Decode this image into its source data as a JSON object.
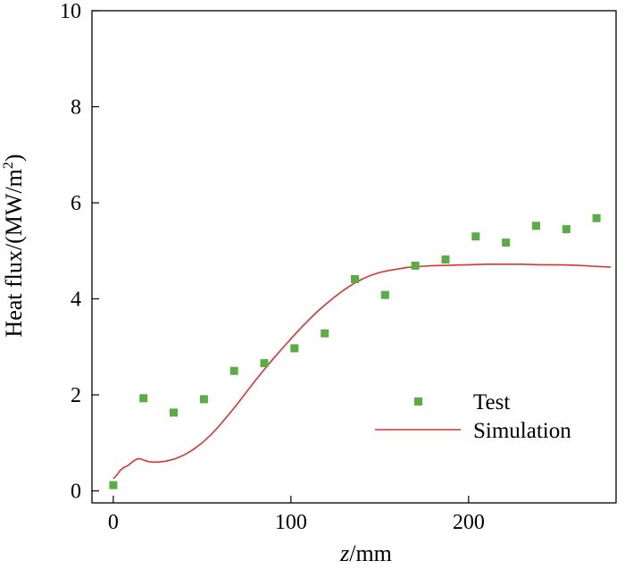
{
  "chart_data": {
    "type": "scatter",
    "xlabel_italic": "z",
    "xlabel_rest": "/mm",
    "ylabel_main": "Heat flux/(MW/m",
    "ylabel_sup": "2",
    "ylabel_end": ")",
    "xlim": [
      -12,
      283
    ],
    "ylim": [
      -0.25,
      10
    ],
    "x_ticks": [
      0,
      100,
      200
    ],
    "y_ticks": [
      0,
      2,
      4,
      6,
      8,
      10
    ],
    "x_tick_labels": [
      "0",
      "100",
      "200"
    ],
    "y_tick_labels": [
      "0",
      "2",
      "4",
      "6",
      "8",
      "10"
    ],
    "legend_position": "center-right",
    "series": [
      {
        "name": "Test",
        "kind": "scatter",
        "color": "#5aac44",
        "x": [
          0,
          17,
          34,
          51,
          68,
          85,
          102,
          119,
          136,
          153,
          170,
          187,
          204,
          221,
          238,
          255,
          272
        ],
        "y": [
          0.12,
          1.93,
          1.63,
          1.91,
          2.5,
          2.66,
          2.97,
          3.28,
          4.41,
          4.08,
          4.69,
          4.82,
          5.3,
          5.17,
          5.52,
          5.45,
          5.68
        ]
      },
      {
        "name": "Simulation",
        "kind": "line",
        "color": "#d93434",
        "x": [
          0,
          2,
          4,
          6,
          8,
          10,
          12,
          14,
          16,
          18,
          20,
          22,
          25,
          30,
          35,
          40,
          45,
          50,
          55,
          60,
          65,
          70,
          75,
          80,
          85,
          90,
          95,
          100,
          105,
          110,
          115,
          120,
          125,
          130,
          135,
          140,
          145,
          150,
          155,
          160,
          165,
          170,
          175,
          180,
          190,
          200,
          210,
          220,
          230,
          240,
          250,
          260,
          270,
          280
        ],
        "y": [
          0.25,
          0.33,
          0.43,
          0.49,
          0.52,
          0.58,
          0.64,
          0.67,
          0.66,
          0.63,
          0.61,
          0.6,
          0.6,
          0.62,
          0.67,
          0.75,
          0.86,
          1.0,
          1.17,
          1.37,
          1.59,
          1.82,
          2.06,
          2.3,
          2.53,
          2.75,
          2.96,
          3.17,
          3.37,
          3.56,
          3.74,
          3.9,
          4.05,
          4.19,
          4.31,
          4.41,
          4.49,
          4.55,
          4.59,
          4.62,
          4.65,
          4.67,
          4.68,
          4.69,
          4.7,
          4.71,
          4.72,
          4.72,
          4.72,
          4.71,
          4.71,
          4.7,
          4.68,
          4.66
        ]
      }
    ]
  }
}
